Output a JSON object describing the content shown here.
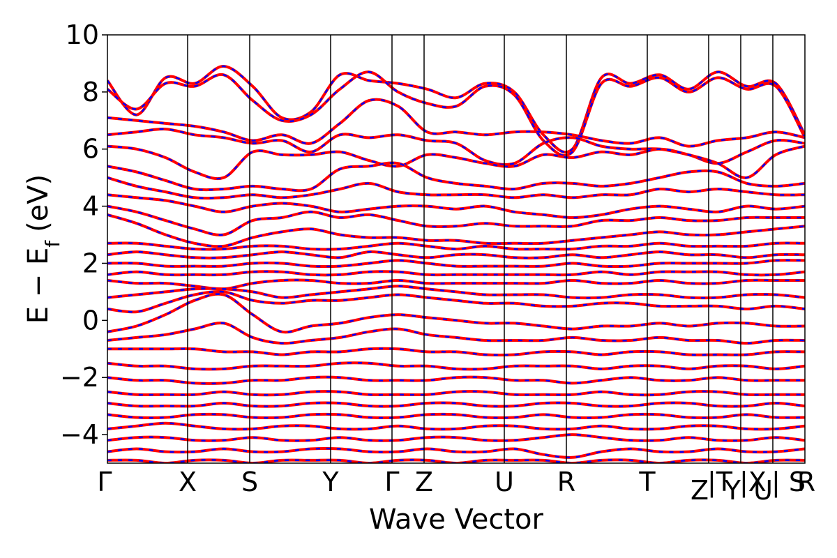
{
  "chart_data": {
    "type": "line",
    "title": "",
    "xlabel": "Wave Vector",
    "ylabel": "E − E",
    "ylabel_sub": "f",
    "ylabel_unit": "(eV)",
    "ylim": [
      -5,
      10
    ],
    "yticks": [
      "−4",
      "−2",
      "0",
      "2",
      "4",
      "6",
      "8",
      "10"
    ],
    "ytick_values": [
      -4,
      -2,
      0,
      2,
      4,
      6,
      8,
      10
    ],
    "xlim": [
      0,
      1
    ],
    "kpoints": [
      {
        "label": "Γ",
        "x": 0.0
      },
      {
        "label": "X",
        "x": 0.115
      },
      {
        "label": "S",
        "x": 0.204
      },
      {
        "label": "Y",
        "x": 0.32
      },
      {
        "label": "Γ",
        "x": 0.408
      },
      {
        "label": "Z",
        "x": 0.454
      },
      {
        "label": "U",
        "x": 0.569
      },
      {
        "label": "R",
        "x": 0.658
      },
      {
        "label": "T",
        "x": 0.774
      },
      {
        "label": "Z",
        "x": 0.862
      },
      {
        "label": "|T",
        "x": 0.862
      },
      {
        "label": "Y",
        "x": 0.908
      },
      {
        "label": "|X",
        "x": 0.908
      },
      {
        "label": "U",
        "x": 0.954
      },
      {
        "label": "| S",
        "x": 0.954
      },
      {
        "label": "R",
        "x": 1.0
      }
    ],
    "legend": "none",
    "grid": false,
    "series_colors": [
      "#ff0000",
      "#0000ff"
    ],
    "series_styles": [
      "solid",
      "dashed"
    ],
    "bands_approx": [
      [
        8.4,
        7.2,
        8.5,
        8.3,
        8.9,
        8.2,
        7.1,
        7.3,
        8.6,
        8.4,
        8.3,
        8.1,
        7.8,
        8.3,
        8.0,
        6.5,
        6.0,
        8.5,
        8.3,
        8.6,
        8.1,
        8.7,
        8.2,
        8.3,
        6.5
      ],
      [
        8.1,
        7.4,
        8.3,
        8.2,
        8.6,
        7.7,
        7.0,
        7.2,
        8.1,
        8.7,
        8.0,
        7.6,
        7.5,
        8.2,
        7.9,
        6.3,
        5.9,
        8.3,
        8.2,
        8.5,
        8.0,
        8.5,
        8.1,
        8.2,
        6.4
      ],
      [
        7.1,
        7.0,
        6.9,
        6.8,
        6.6,
        6.3,
        6.5,
        6.2,
        6.9,
        7.7,
        7.5,
        6.6,
        6.6,
        6.5,
        6.6,
        6.6,
        6.5,
        6.3,
        6.2,
        6.4,
        6.1,
        6.3,
        6.4,
        6.6,
        6.4
      ],
      [
        6.5,
        6.6,
        6.7,
        6.5,
        6.4,
        6.2,
        6.3,
        5.9,
        6.5,
        6.4,
        6.5,
        6.3,
        6.2,
        5.6,
        5.5,
        6.2,
        6.4,
        6.1,
        6.0,
        6.0,
        5.8,
        5.5,
        5.9,
        6.3,
        6.2
      ],
      [
        6.1,
        6.0,
        5.7,
        5.2,
        5.0,
        5.9,
        5.8,
        5.8,
        5.9,
        5.6,
        5.4,
        5.8,
        5.7,
        5.5,
        5.4,
        5.8,
        5.7,
        5.9,
        5.8,
        6.0,
        5.8,
        5.5,
        5.0,
        5.8,
        6.1
      ],
      [
        5.4,
        5.2,
        4.9,
        4.6,
        4.6,
        4.7,
        4.6,
        4.6,
        5.3,
        5.4,
        5.5,
        5.0,
        4.8,
        4.7,
        4.6,
        4.8,
        4.8,
        4.7,
        4.8,
        5.0,
        5.2,
        5.2,
        4.8,
        4.7,
        4.8
      ],
      [
        5.0,
        4.7,
        4.5,
        4.3,
        4.3,
        4.4,
        4.3,
        4.4,
        4.6,
        4.8,
        4.5,
        4.4,
        4.4,
        4.4,
        4.3,
        4.4,
        4.3,
        4.4,
        4.4,
        4.6,
        4.5,
        4.6,
        4.5,
        4.4,
        4.4
      ],
      [
        4.4,
        4.3,
        4.2,
        4.0,
        3.8,
        4.0,
        4.1,
        4.0,
        3.8,
        3.9,
        4.0,
        4.0,
        3.9,
        4.0,
        3.8,
        3.7,
        3.6,
        3.7,
        3.9,
        4.0,
        3.9,
        3.8,
        4.0,
        3.9,
        4.0
      ],
      [
        4.0,
        3.8,
        3.5,
        3.2,
        3.0,
        3.5,
        3.6,
        3.8,
        3.6,
        3.7,
        3.5,
        3.3,
        3.3,
        3.4,
        3.3,
        3.3,
        3.3,
        3.5,
        3.5,
        3.6,
        3.5,
        3.5,
        3.6,
        3.6,
        3.6
      ],
      [
        3.7,
        3.4,
        3.0,
        2.7,
        2.6,
        2.9,
        3.1,
        3.2,
        3.0,
        2.9,
        2.9,
        2.8,
        2.8,
        2.7,
        2.7,
        2.7,
        2.8,
        2.9,
        3.0,
        3.1,
        3.0,
        3.0,
        3.1,
        3.2,
        3.3
      ],
      [
        2.7,
        2.7,
        2.6,
        2.5,
        2.5,
        2.6,
        2.6,
        2.5,
        2.5,
        2.6,
        2.7,
        2.6,
        2.5,
        2.6,
        2.5,
        2.5,
        2.5,
        2.6,
        2.6,
        2.7,
        2.6,
        2.6,
        2.6,
        2.7,
        2.7
      ],
      [
        2.3,
        2.4,
        2.3,
        2.2,
        2.2,
        2.3,
        2.4,
        2.3,
        2.2,
        2.4,
        2.3,
        2.2,
        2.3,
        2.3,
        2.2,
        2.2,
        2.3,
        2.2,
        2.3,
        2.4,
        2.3,
        2.3,
        2.2,
        2.3,
        2.3
      ],
      [
        2.0,
        2.0,
        1.9,
        1.9,
        1.9,
        2.0,
        2.0,
        1.9,
        1.9,
        2.0,
        2.1,
        2.0,
        1.9,
        1.9,
        1.9,
        1.9,
        2.0,
        1.9,
        1.9,
        2.0,
        2.0,
        2.0,
        2.0,
        2.1,
        2.1
      ],
      [
        1.6,
        1.7,
        1.6,
        1.6,
        1.6,
        1.7,
        1.7,
        1.6,
        1.6,
        1.7,
        1.7,
        1.6,
        1.6,
        1.6,
        1.6,
        1.6,
        1.6,
        1.7,
        1.6,
        1.7,
        1.7,
        1.7,
        1.6,
        1.6,
        1.7
      ],
      [
        1.4,
        1.3,
        1.3,
        1.2,
        1.1,
        1.3,
        1.4,
        1.4,
        1.3,
        1.3,
        1.4,
        1.3,
        1.3,
        1.3,
        1.3,
        1.3,
        1.4,
        1.3,
        1.3,
        1.4,
        1.3,
        1.3,
        1.4,
        1.4,
        1.4
      ],
      [
        0.8,
        0.9,
        1.0,
        1.1,
        1.1,
        1.0,
        0.8,
        0.9,
        1.0,
        1.1,
        1.2,
        1.1,
        1.0,
        0.9,
        0.9,
        0.9,
        0.8,
        0.8,
        0.9,
        0.9,
        0.8,
        0.8,
        0.9,
        0.9,
        0.8
      ],
      [
        0.4,
        0.3,
        0.6,
        0.9,
        1.0,
        0.7,
        0.6,
        0.7,
        0.7,
        0.8,
        0.9,
        0.8,
        0.7,
        0.6,
        0.6,
        0.5,
        0.5,
        0.6,
        0.6,
        0.5,
        0.5,
        0.5,
        0.4,
        0.5,
        0.4
      ],
      [
        -0.4,
        -0.2,
        0.2,
        0.7,
        0.9,
        0.2,
        -0.4,
        -0.2,
        -0.1,
        0.1,
        0.2,
        0.1,
        0.0,
        -0.1,
        -0.1,
        -0.2,
        -0.3,
        -0.2,
        -0.2,
        -0.1,
        -0.2,
        -0.1,
        -0.1,
        -0.2,
        -0.2
      ],
      [
        -0.7,
        -0.6,
        -0.5,
        -0.3,
        -0.1,
        -0.6,
        -0.8,
        -0.7,
        -0.6,
        -0.4,
        -0.3,
        -0.5,
        -0.6,
        -0.7,
        -0.7,
        -0.7,
        -0.6,
        -0.7,
        -0.7,
        -0.6,
        -0.7,
        -0.7,
        -0.8,
        -0.7,
        -0.7
      ],
      [
        -1.0,
        -1.0,
        -1.0,
        -1.0,
        -1.1,
        -1.1,
        -1.2,
        -1.1,
        -1.1,
        -1.0,
        -1.0,
        -1.1,
        -1.1,
        -1.2,
        -1.2,
        -1.1,
        -1.1,
        -1.2,
        -1.1,
        -1.1,
        -1.2,
        -1.2,
        -1.2,
        -1.1,
        -1.1
      ],
      [
        -1.5,
        -1.6,
        -1.6,
        -1.7,
        -1.7,
        -1.6,
        -1.6,
        -1.6,
        -1.5,
        -1.5,
        -1.6,
        -1.6,
        -1.7,
        -1.7,
        -1.6,
        -1.6,
        -1.6,
        -1.7,
        -1.6,
        -1.6,
        -1.7,
        -1.6,
        -1.6,
        -1.7,
        -1.6
      ],
      [
        -2.0,
        -2.1,
        -2.1,
        -2.2,
        -2.2,
        -2.1,
        -2.1,
        -2.0,
        -2.0,
        -2.1,
        -2.1,
        -2.1,
        -2.0,
        -2.0,
        -2.1,
        -2.1,
        -2.2,
        -2.1,
        -2.0,
        -2.1,
        -2.1,
        -2.0,
        -2.1,
        -2.1,
        -2.1
      ],
      [
        -2.5,
        -2.6,
        -2.6,
        -2.6,
        -2.5,
        -2.6,
        -2.6,
        -2.5,
        -2.5,
        -2.6,
        -2.6,
        -2.6,
        -2.5,
        -2.5,
        -2.6,
        -2.6,
        -2.6,
        -2.5,
        -2.6,
        -2.6,
        -2.5,
        -2.5,
        -2.6,
        -2.6,
        -2.6
      ],
      [
        -2.9,
        -3.0,
        -3.0,
        -3.0,
        -2.9,
        -3.0,
        -3.0,
        -2.9,
        -2.9,
        -3.0,
        -3.0,
        -2.9,
        -2.9,
        -3.0,
        -3.0,
        -2.9,
        -2.9,
        -3.0,
        -3.0,
        -2.9,
        -2.9,
        -3.0,
        -3.0,
        -2.9,
        -3.0
      ],
      [
        -3.3,
        -3.4,
        -3.4,
        -3.3,
        -3.3,
        -3.4,
        -3.4,
        -3.3,
        -3.3,
        -3.4,
        -3.4,
        -3.3,
        -3.3,
        -3.4,
        -3.4,
        -3.3,
        -3.4,
        -3.4,
        -3.3,
        -3.3,
        -3.4,
        -3.4,
        -3.3,
        -3.4,
        -3.4
      ],
      [
        -3.8,
        -3.7,
        -3.6,
        -3.7,
        -3.8,
        -3.8,
        -3.7,
        -3.7,
        -3.8,
        -3.8,
        -3.7,
        -3.8,
        -3.8,
        -3.7,
        -3.7,
        -3.8,
        -3.8,
        -3.7,
        -3.8,
        -3.8,
        -3.7,
        -3.7,
        -3.8,
        -3.8,
        -3.7
      ],
      [
        -4.2,
        -4.1,
        -4.1,
        -4.2,
        -4.2,
        -4.1,
        -4.2,
        -4.2,
        -4.1,
        -4.2,
        -4.2,
        -4.1,
        -4.1,
        -4.2,
        -4.2,
        -4.1,
        -4.0,
        -4.1,
        -4.2,
        -4.2,
        -4.1,
        -4.2,
        -4.2,
        -4.1,
        -4.2
      ],
      [
        -4.6,
        -4.5,
        -4.6,
        -4.6,
        -4.5,
        -4.6,
        -4.6,
        -4.5,
        -4.5,
        -4.6,
        -4.6,
        -4.5,
        -4.6,
        -4.6,
        -4.5,
        -4.7,
        -4.8,
        -4.6,
        -4.5,
        -4.6,
        -4.6,
        -4.5,
        -4.6,
        -4.6,
        -4.5
      ],
      [
        -4.9,
        -4.9,
        -5.0,
        -4.9,
        -4.9,
        -5.0,
        -4.9,
        -4.9,
        -4.9,
        -5.0,
        -4.9,
        -4.9,
        -5.0,
        -4.9,
        -4.9,
        -4.9,
        -5.0,
        -4.9,
        -4.9,
        -5.0,
        -4.9,
        -4.9,
        -5.0,
        -4.9,
        -4.9
      ]
    ]
  }
}
